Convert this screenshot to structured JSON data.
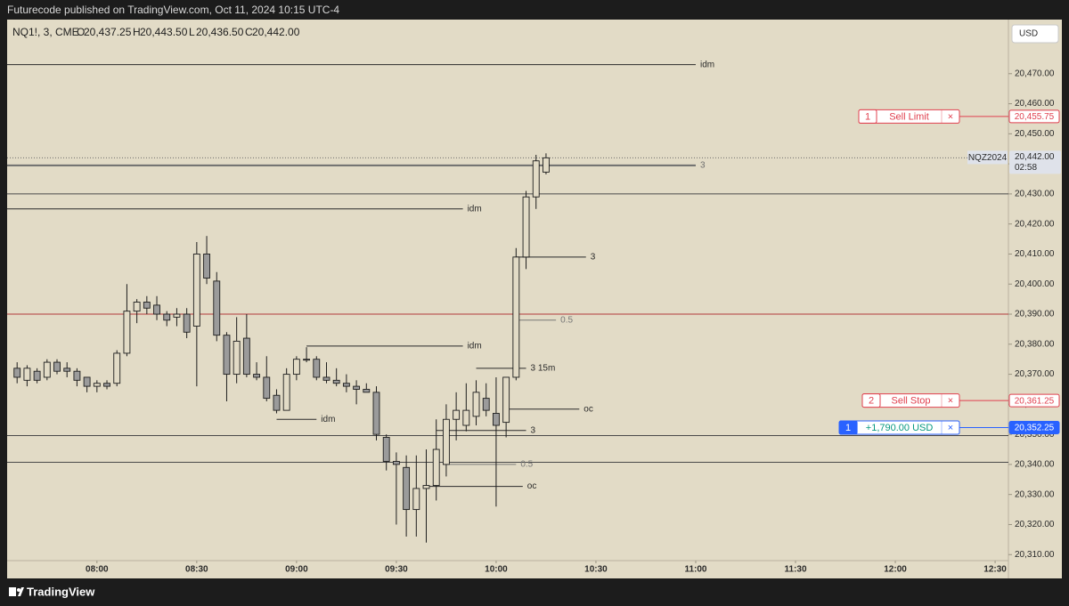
{
  "header": {
    "title": "Futurecode published on TradingView.com, Oct 11, 2024 10:15 UTC-4"
  },
  "footer": {
    "brand": "TradingView"
  },
  "chart_data": {
    "type": "candlestick",
    "symbol": "NQ1!, 3, CME",
    "legend_ohlc": [
      {
        "key": "O",
        "text": "20,437.25"
      },
      {
        "key": "H",
        "text": "20,443.50"
      },
      {
        "key": "L",
        "text": "20,436.50"
      },
      {
        "key": "C",
        "text": "20,442.00"
      }
    ],
    "currency": "USD",
    "background": "#e2dbc6",
    "up_color": "#e2dbc6",
    "down_color": "#9b9b9b",
    "wick_color": "#1e1e1e",
    "x": [
      456,
      459,
      462,
      465,
      468,
      471,
      474,
      477,
      480,
      483,
      486,
      489,
      492,
      495,
      498,
      501,
      504,
      507,
      510,
      513,
      516,
      519,
      522,
      525,
      528,
      531,
      534,
      537,
      540,
      543,
      546,
      549,
      552,
      555,
      558,
      561,
      564,
      567,
      570,
      573,
      576,
      579,
      582,
      585,
      588,
      591,
      594,
      597,
      600,
      603,
      606,
      609,
      612,
      615
    ],
    "open": [
      20372,
      20368,
      20371,
      20369,
      20374,
      20372,
      20371,
      20369,
      20366,
      20367,
      20367,
      20377,
      20391,
      20394,
      20393,
      20390,
      20389,
      20390,
      20386,
      20410,
      20401,
      20383,
      20370,
      20382,
      20370,
      20369,
      20363,
      20358,
      20370,
      20375,
      20375,
      20369,
      20368,
      20367,
      20366,
      20365,
      20364,
      20349,
      20341,
      20339,
      20325,
      20332,
      20333,
      20340,
      20355,
      20353,
      20356,
      20362,
      20357,
      20354,
      20369,
      20409,
      20429,
      20437.25
    ],
    "high": [
      20374,
      20373,
      20372,
      20375,
      20375,
      20374,
      20372,
      20369,
      20368,
      20368,
      20378,
      20400,
      20395,
      20396,
      20396,
      20391,
      20392,
      20392,
      20414,
      20416,
      20404,
      20384,
      20389,
      20390,
      20374,
      20376,
      20365,
      20372,
      20376,
      20379,
      20376,
      20374,
      20372,
      20370,
      20368,
      20367,
      20366,
      20350,
      20344,
      20343,
      20343,
      20345,
      20355,
      20360,
      20364,
      20367,
      20368,
      20367,
      20369,
      20369,
      20412,
      20431,
      20443,
      20443.5
    ],
    "low": [
      20367,
      20366,
      20367,
      20368,
      20370,
      20369,
      20366,
      20364,
      20364,
      20365,
      20366,
      20376,
      20387,
      20390,
      20388,
      20386,
      20386,
      20382,
      20366,
      20400,
      20381,
      20361,
      20367,
      20369,
      20368,
      20361,
      20357,
      20358,
      20368,
      20374,
      20368,
      20367,
      20366,
      20364,
      20360,
      20364,
      20348,
      20338,
      20320,
      20316,
      20316,
      20314,
      20328,
      20336,
      20348,
      20351,
      20353,
      20356,
      20326,
      20349,
      20368,
      20405,
      20425,
      20436.5
    ],
    "close": [
      20369,
      20372,
      20368,
      20374,
      20371,
      20371,
      20368,
      20366,
      20367,
      20366,
      20377,
      20391,
      20394,
      20392,
      20390,
      20388,
      20390,
      20384,
      20410,
      20402,
      20383,
      20370,
      20381,
      20370,
      20369,
      20362,
      20358,
      20370,
      20375,
      20375,
      20369,
      20368,
      20367,
      20366,
      20365,
      20364,
      20350,
      20341,
      20340,
      20325,
      20332,
      20333,
      20345,
      20355,
      20358,
      20358,
      20364,
      20358,
      20353,
      20369,
      20409,
      20429,
      20441,
      20442
    ],
    "xlim": [
      453,
      754
    ],
    "xticks": [
      {
        "value": 480,
        "label": "08:00"
      },
      {
        "value": 510,
        "label": "08:30"
      },
      {
        "value": 540,
        "label": "09:00"
      },
      {
        "value": 570,
        "label": "09:30"
      },
      {
        "value": 600,
        "label": "10:00"
      },
      {
        "value": 630,
        "label": "10:30"
      },
      {
        "value": 660,
        "label": "11:00"
      },
      {
        "value": 690,
        "label": "11:30"
      },
      {
        "value": 720,
        "label": "12:00"
      },
      {
        "value": 750,
        "label": "12:30"
      }
    ],
    "ylim": [
      20308,
      20488
    ],
    "yticks": [
      {
        "value": 20310,
        "label": "20,310.00"
      },
      {
        "value": 20320,
        "label": "20,320.00"
      },
      {
        "value": 20330,
        "label": "20,330.00"
      },
      {
        "value": 20340,
        "label": "20,340.00"
      },
      {
        "value": 20350,
        "label": "20,350.00"
      },
      {
        "value": 20360,
        "label": "20,360.00"
      },
      {
        "value": 20370,
        "label": "20,370.00"
      },
      {
        "value": 20380,
        "label": "20,380.00"
      },
      {
        "value": 20390,
        "label": "20,390.00"
      },
      {
        "value": 20400,
        "label": "20,400.00"
      },
      {
        "value": 20410,
        "label": "20,410.00"
      },
      {
        "value": 20420,
        "label": "20,420.00"
      },
      {
        "value": 20430,
        "label": "20,430.00"
      },
      {
        "value": 20440,
        "label": "20,440.00"
      },
      {
        "value": 20450,
        "label": "20,450.00"
      },
      {
        "value": 20460,
        "label": "20,460.00"
      },
      {
        "value": 20470,
        "label": "20,470.00"
      }
    ],
    "grid": false,
    "levels": [
      {
        "price": 20473,
        "from": 453,
        "to": 660,
        "label": "idm",
        "color": "#2a2a2a"
      },
      {
        "price": 20439.5,
        "from": 453,
        "to": 660,
        "label": "3",
        "color": "#6e6e6e",
        "width": 2
      },
      {
        "price": 20430,
        "from": 453,
        "to": 754,
        "color": "#4a4a4a"
      },
      {
        "price": 20425,
        "from": 453,
        "to": 590,
        "label": "idm",
        "color": "#2a2a2a"
      },
      {
        "price": 20409,
        "from": 606,
        "to": 627,
        "label": "3",
        "color": "#2a2a2a"
      },
      {
        "price": 20390,
        "from": 453,
        "to": 754,
        "color": "#b23a3a"
      },
      {
        "price": 20388,
        "from": 605,
        "to": 618,
        "label": "0.5",
        "color": "#777777"
      },
      {
        "price": 20379.4,
        "from": 543,
        "to": 590,
        "label": "idm",
        "color": "#2a2a2a"
      },
      {
        "price": 20372,
        "from": 594,
        "to": 609,
        "label": "3 15m",
        "color": "#2a2a2a"
      },
      {
        "price": 20358.4,
        "from": 603,
        "to": 625,
        "label": "oc",
        "color": "#2a2a2a"
      },
      {
        "price": 20355,
        "from": 534,
        "to": 546,
        "label": "idm",
        "color": "#2a2a2a"
      },
      {
        "price": 20351.3,
        "from": 582,
        "to": 609,
        "label": "3",
        "color": "#2a2a2a"
      },
      {
        "price": 20349.6,
        "from": 453,
        "to": 754,
        "color": "#4a4a4a"
      },
      {
        "price": 20340.7,
        "from": 453,
        "to": 754,
        "color": "#4a4a4a"
      },
      {
        "price": 20340,
        "from": 584,
        "to": 606,
        "label": "0.5",
        "color": "#777777"
      },
      {
        "price": 20332.7,
        "from": 579,
        "to": 608,
        "label": "oc",
        "color": "#2a2a2a"
      }
    ],
    "orders": [
      {
        "qty": 1,
        "label": "Sell Limit",
        "close": "×",
        "price": 20455.75,
        "price_label": "20,455.75",
        "color": "#e0404f"
      },
      {
        "qty": 2,
        "label": "Sell Stop",
        "close": "×",
        "price": 20361.25,
        "price_label": "20,361.25",
        "color": "#e0404f"
      },
      {
        "qty": 1,
        "label": "+1,790.00 USD",
        "close": "×",
        "price": 20352.25,
        "price_label": "20,352.25",
        "color": "#2962ff",
        "text_color": "#089981"
      }
    ],
    "last_price": {
      "symbol_tag": "NQZ2024",
      "value": 20442,
      "label": "20,442.00",
      "countdown": "02:58"
    }
  }
}
